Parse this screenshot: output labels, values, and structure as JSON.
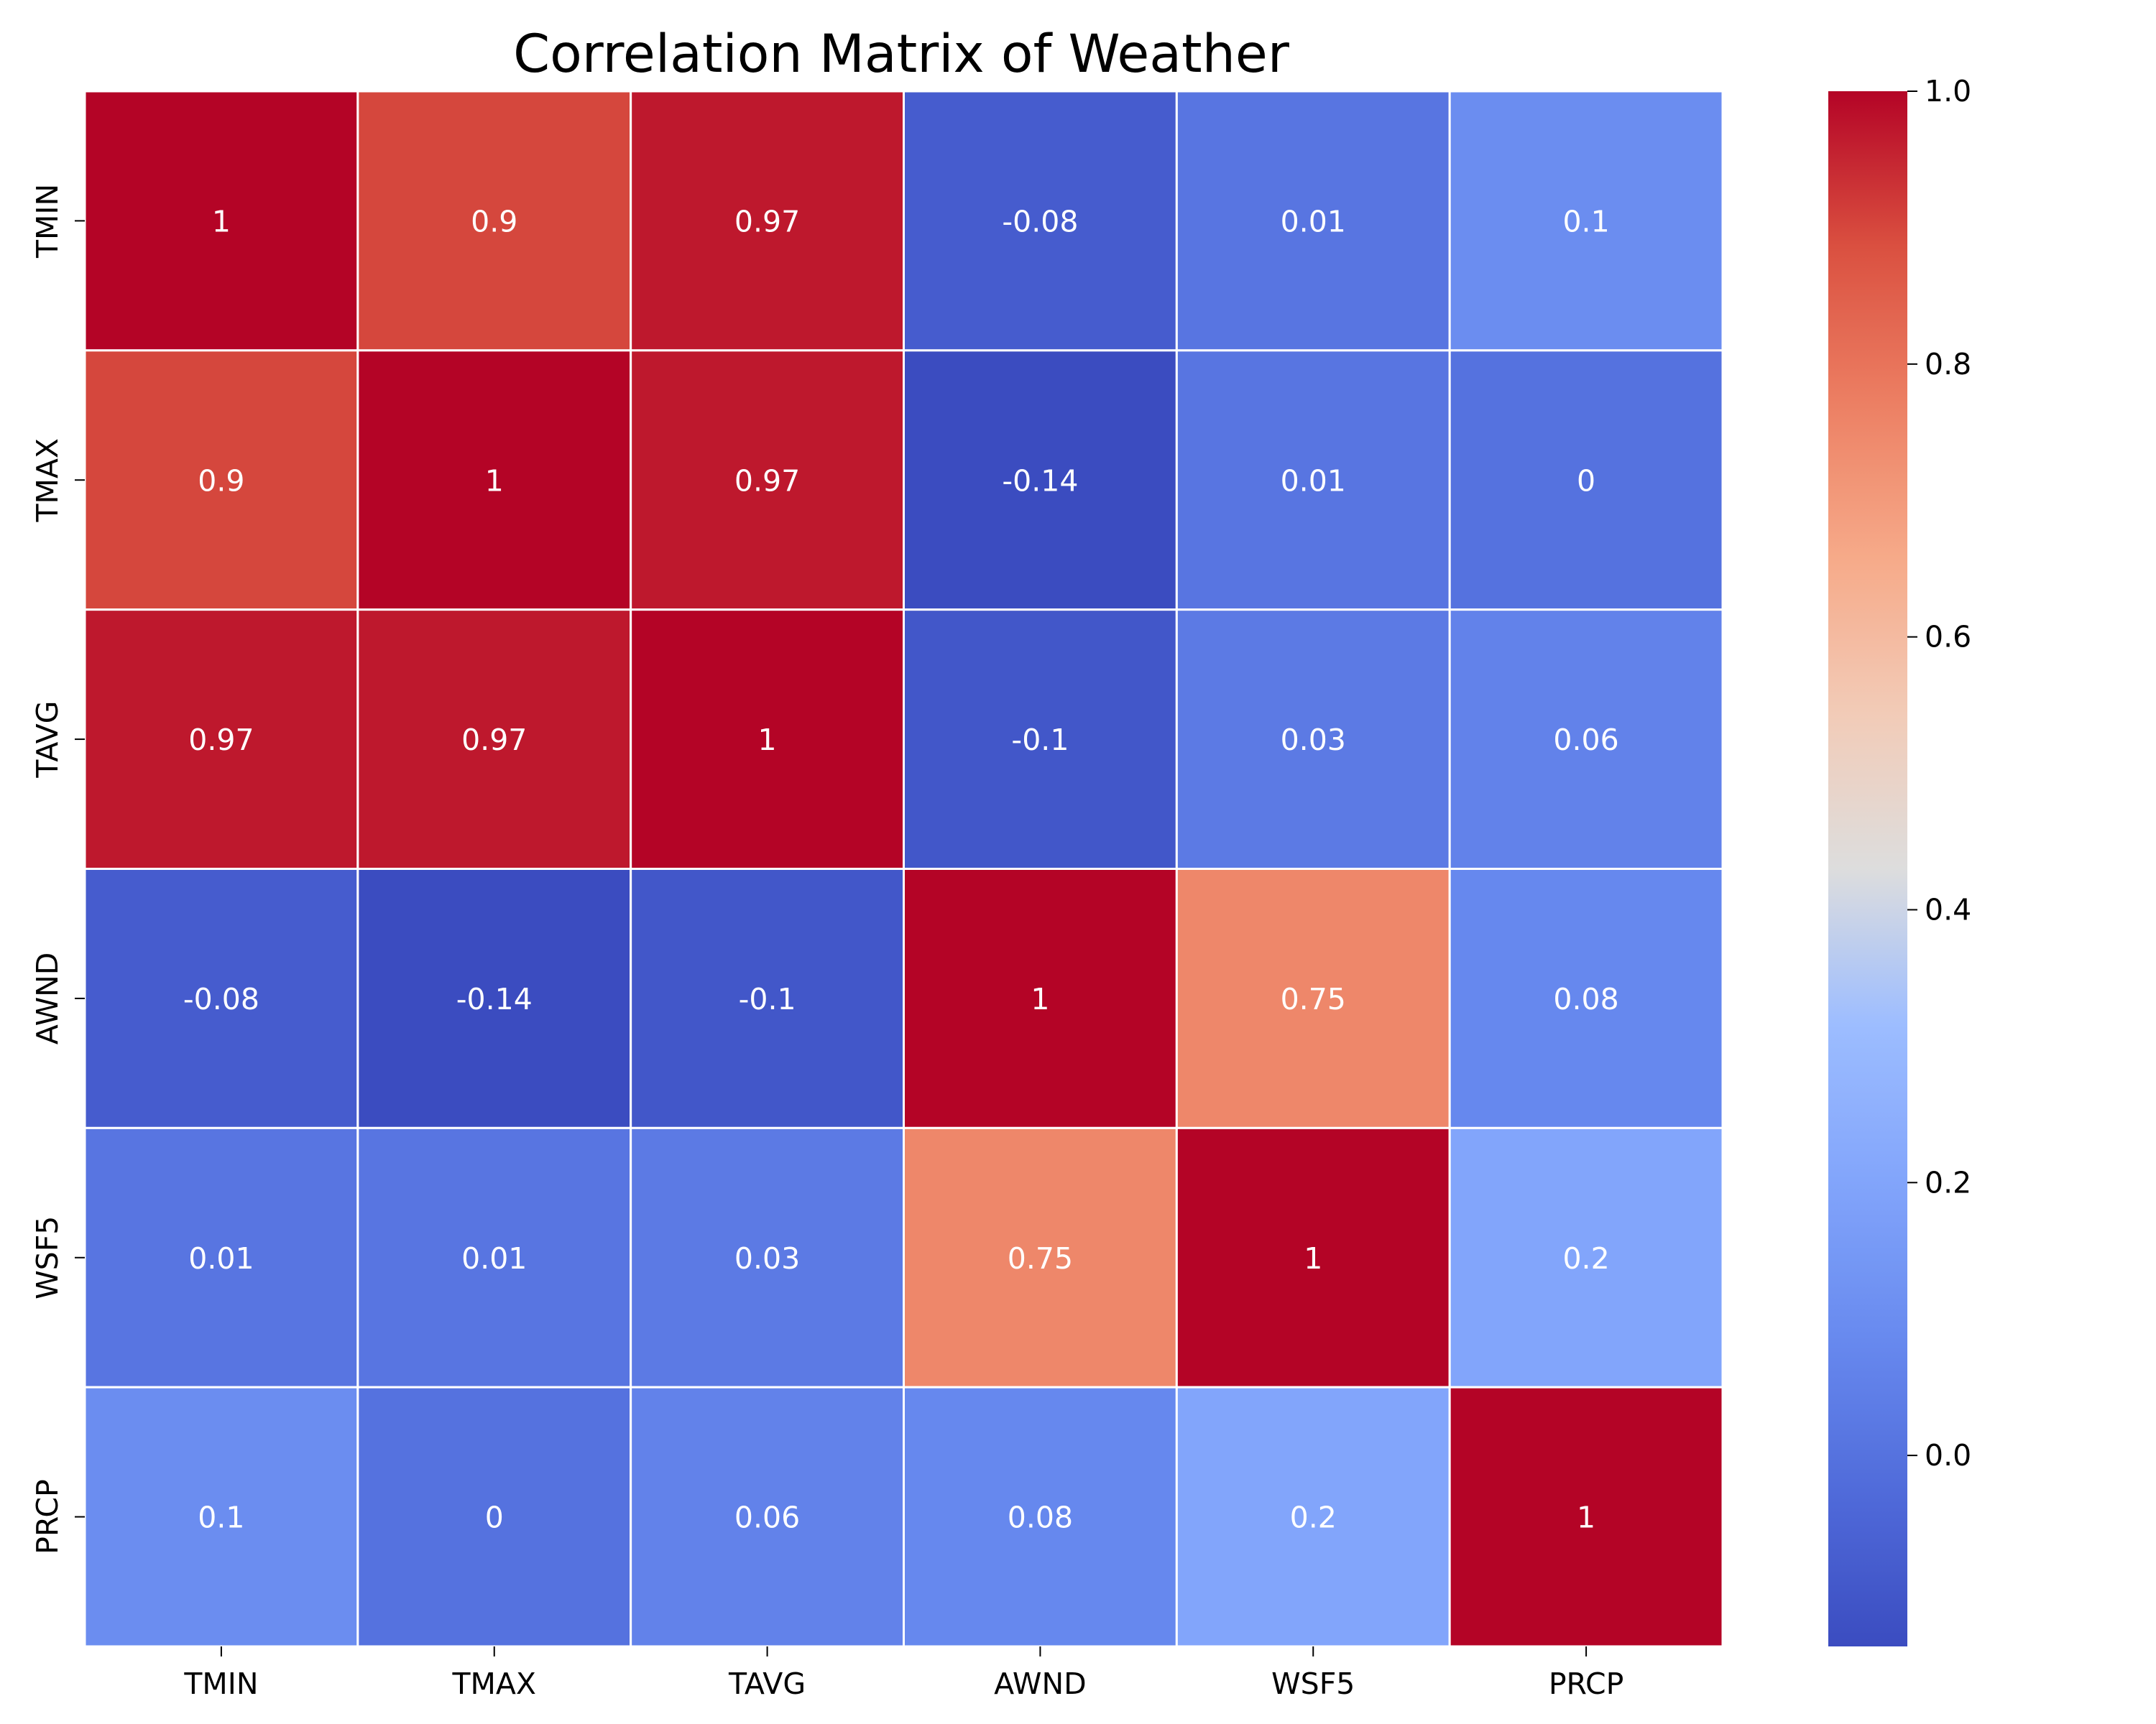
{
  "chart_data": {
    "type": "heatmap",
    "title": "Correlation Matrix of Weather",
    "x_categories": [
      "TMIN",
      "TMAX",
      "TAVG",
      "AWND",
      "WSF5",
      "PRCP"
    ],
    "y_categories": [
      "TMIN",
      "TMAX",
      "TAVG",
      "AWND",
      "WSF5",
      "PRCP"
    ],
    "values": [
      [
        1,
        0.9,
        0.97,
        -0.08,
        0.01,
        0.1
      ],
      [
        0.9,
        1,
        0.97,
        -0.14,
        0.01,
        0
      ],
      [
        0.97,
        0.97,
        1,
        -0.1,
        0.03,
        0.06
      ],
      [
        -0.08,
        -0.14,
        -0.1,
        1,
        0.75,
        0.08
      ],
      [
        0.01,
        0.01,
        0.03,
        0.75,
        1,
        0.2
      ],
      [
        0.1,
        0,
        0.06,
        0.08,
        0.2,
        1
      ]
    ],
    "annotations": [
      [
        "1",
        "0.9",
        "0.97",
        "-0.08",
        "0.01",
        "0.1"
      ],
      [
        "0.9",
        "1",
        "0.97",
        "-0.14",
        "0.01",
        "0"
      ],
      [
        "0.97",
        "0.97",
        "1",
        "-0.1",
        "0.03",
        "0.06"
      ],
      [
        "-0.08",
        "-0.14",
        "-0.1",
        "1",
        "0.75",
        "0.08"
      ],
      [
        "0.01",
        "0.01",
        "0.03",
        "0.75",
        "1",
        "0.2"
      ],
      [
        "0.1",
        "0",
        "0.06",
        "0.08",
        "0.2",
        "1"
      ]
    ],
    "colormap": "coolwarm",
    "colorbar": {
      "range": [
        -0.14,
        1.0
      ],
      "ticks": [
        0.0,
        0.2,
        0.4,
        0.6,
        0.8,
        1.0
      ],
      "tick_labels": [
        "0.0",
        "0.2",
        "0.4",
        "0.6",
        "0.8",
        "1.0"
      ],
      "position": "right"
    },
    "grid": true,
    "cell_border_color": "#ffffff"
  }
}
